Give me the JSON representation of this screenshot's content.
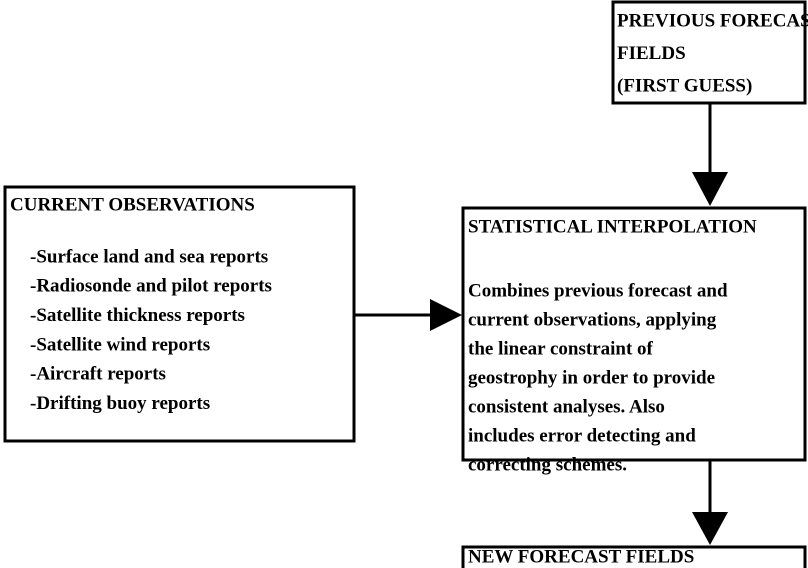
{
  "nodes": [
    {
      "lines": [
        "PREVIOUS FORECAST",
        "FIELDS",
        "(FIRST GUESS)"
      ]
    },
    {
      "title": "CURRENT OBSERVATIONS",
      "lines": [
        "-Surface land and sea reports",
        "-Radiosonde and pilot reports",
        "-Satellite thickness reports",
        "-Satellite wind reports",
        "-Aircraft reports",
        "-Drifting buoy reports"
      ]
    },
    {
      "title": "STATISTICAL INTERPOLATION",
      "lines": [
        "Combines previous forecast and",
        "current observations, applying",
        "the linear constraint of",
        "geostrophy in order to provide",
        "consistent analyses.  Also",
        "includes error detecting and",
        "correcting schemes."
      ]
    },
    {
      "title": "NEW FORECAST  FIELDS"
    }
  ]
}
